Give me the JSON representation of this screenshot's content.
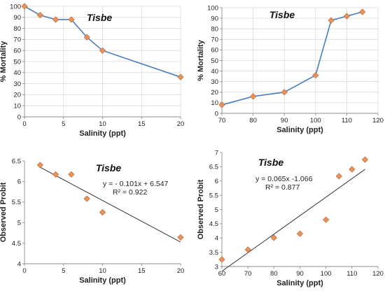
{
  "colors": {
    "series_line": "#4a7ebb",
    "marker_fill": "#e4935e",
    "marker_stroke": "#c0652d",
    "trendline": "#333333",
    "grid": "#d9d9d9"
  },
  "chart_data": [
    {
      "type": "line",
      "title": "Tisbe",
      "xlabel": "Salinity (ppt)",
      "ylabel": "% Mortality",
      "xlim": [
        0,
        20
      ],
      "ylim": [
        0,
        100
      ],
      "xticks": [
        0,
        5,
        10,
        15,
        20
      ],
      "yticks": [
        0,
        10,
        20,
        30,
        40,
        50,
        60,
        70,
        80,
        90,
        100
      ],
      "grid": true,
      "series": [
        {
          "x": [
            0,
            2,
            4,
            6,
            8,
            10,
            20
          ],
          "y": [
            100,
            92,
            88,
            88,
            72,
            60,
            36
          ]
        }
      ]
    },
    {
      "type": "line",
      "title": "Tisbe",
      "xlabel": "Salinity (ppt)",
      "ylabel": "% Mortality",
      "xlim": [
        70,
        120
      ],
      "ylim": [
        0,
        100
      ],
      "xticks": [
        70,
        80,
        90,
        100,
        110,
        120
      ],
      "yticks": [
        0,
        10,
        20,
        30,
        40,
        50,
        60,
        70,
        80,
        90,
        100
      ],
      "grid": true,
      "series": [
        {
          "x": [
            70,
            80,
            90,
            100,
            105,
            110,
            115
          ],
          "y": [
            8,
            16,
            20,
            36,
            88,
            92,
            96
          ]
        }
      ]
    },
    {
      "type": "scatter",
      "title": "Tisbe",
      "xlabel": "Salinity (ppt)",
      "ylabel": "Observed Probit",
      "xlim": [
        0,
        20
      ],
      "ylim": [
        4,
        6.5
      ],
      "xticks": [
        0,
        5,
        10,
        15,
        20
      ],
      "yticks": [
        "4",
        "4.5",
        "5",
        "5.5",
        "6",
        "6.5"
      ],
      "grid": false,
      "equation": "y = - 0.101x + 6.547",
      "r2": "R² = 0.922",
      "trendline": {
        "slope": -0.101,
        "intercept": 6.547,
        "x_from": 2,
        "x_to": 20
      },
      "series": [
        {
          "x": [
            2,
            4,
            6,
            8,
            10,
            20
          ],
          "y": [
            6.4,
            6.17,
            6.17,
            5.58,
            5.25,
            4.64
          ]
        }
      ]
    },
    {
      "type": "scatter",
      "title": "Tisbe",
      "xlabel": "Salinity (ppt)",
      "ylabel": "Observed Probit",
      "xlim": [
        60,
        120
      ],
      "ylim": [
        3,
        7
      ],
      "xticks": [
        60,
        70,
        80,
        90,
        100,
        110,
        120
      ],
      "yticks": [
        "3",
        "3.5",
        "4",
        "4.5",
        "5",
        "5.5",
        "6",
        "6.5",
        "7"
      ],
      "grid": false,
      "equation": "y = 0.065x -1.066",
      "r2": "R² = 0.877",
      "trendline": {
        "slope": 0.065,
        "intercept": -1.066,
        "x_from": 60,
        "x_to": 115
      },
      "series": [
        {
          "x": [
            60,
            70,
            80,
            90,
            100,
            105,
            110,
            115
          ],
          "y": [
            3.25,
            3.59,
            4.01,
            4.15,
            4.64,
            6.17,
            6.41,
            6.75
          ]
        }
      ]
    }
  ]
}
